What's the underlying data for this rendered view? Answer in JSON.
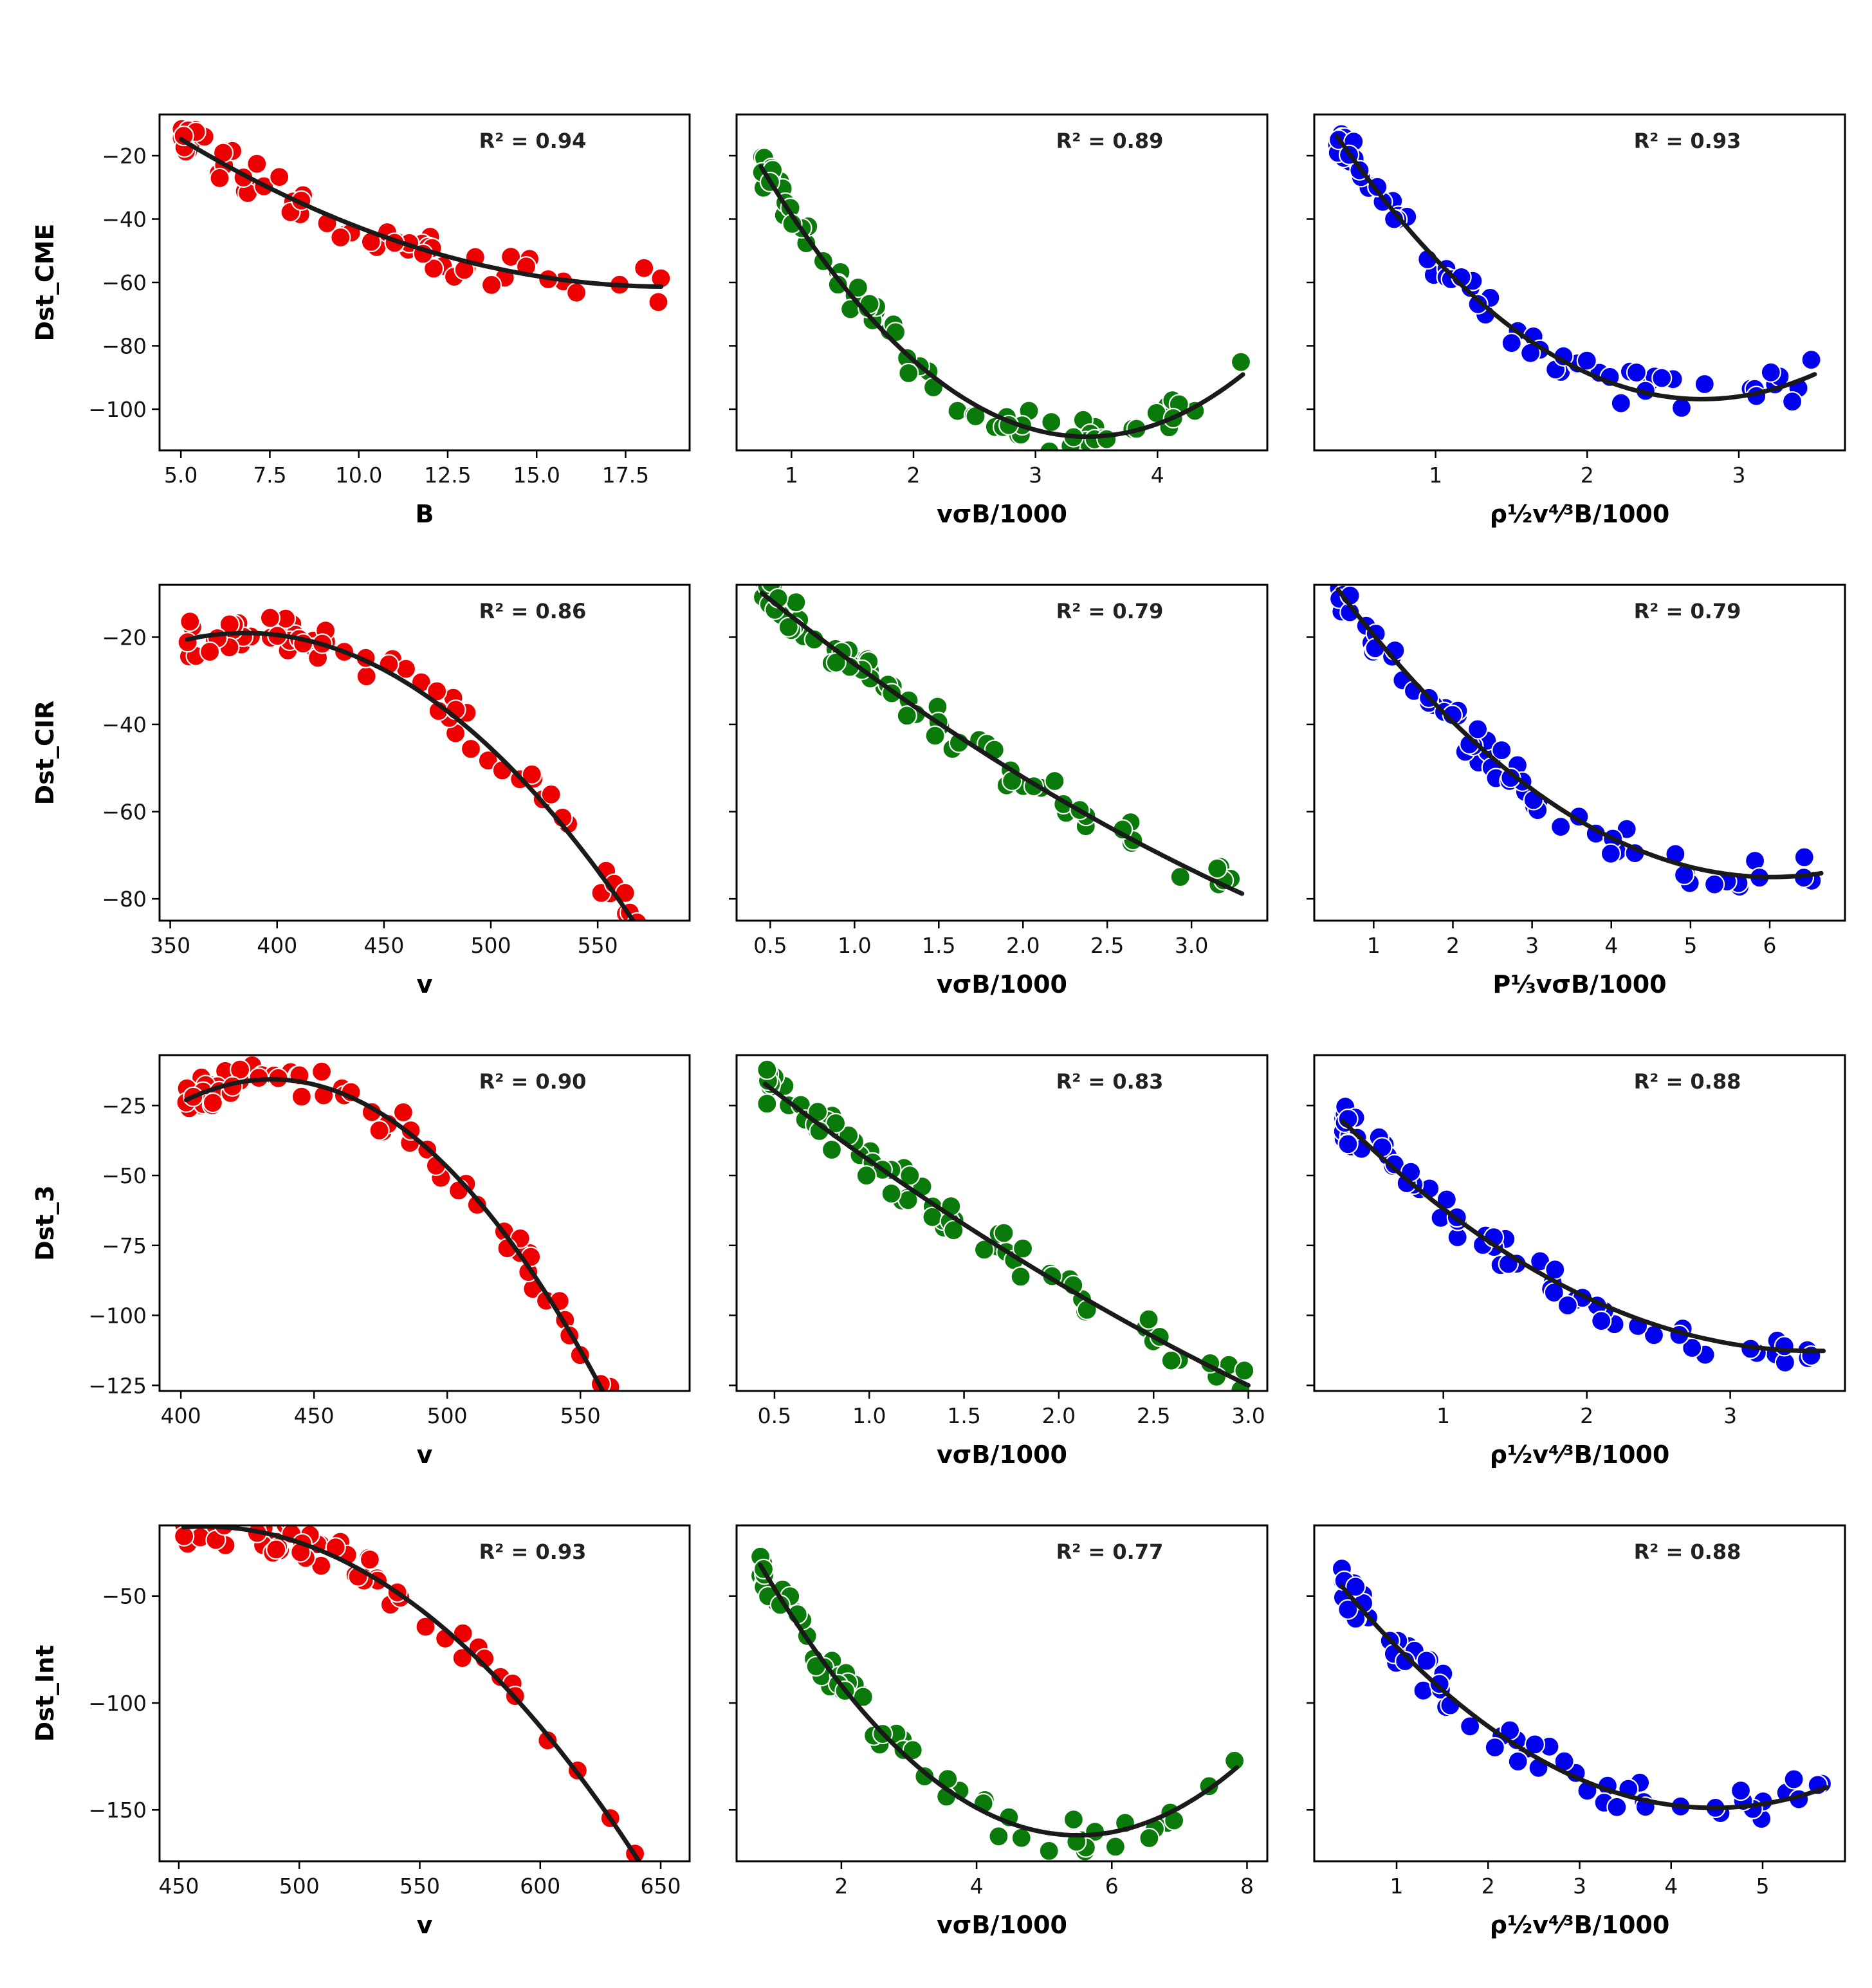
{
  "colors": {
    "red": "#ee0000",
    "green": "#0a7a0a",
    "blue": "#0000ee",
    "fit": "#1a1a1a"
  },
  "chart_data": [
    {
      "type": "scatter",
      "row": 0,
      "col": 0,
      "ylabel": "Dst_CME",
      "xlabel": "B",
      "annotation": "R² = 0.94",
      "color": "red",
      "xlim": [
        4.4,
        19.3
      ],
      "ylim": [
        -113,
        -7
      ],
      "xticks": [
        5.0,
        7.5,
        10.0,
        12.5,
        15.0,
        17.5
      ],
      "xtick_labels": [
        "5.0",
        "7.5",
        "10.0",
        "12.5",
        "15.0",
        "17.5"
      ],
      "yticks": [
        -20,
        -40,
        -60,
        -80,
        -100
      ],
      "ytick_labels": [
        "−20",
        "−40",
        "−60",
        "−80",
        "−100"
      ],
      "fit": [
        0.249,
        -9.3,
        25.5
      ],
      "fit_range": [
        5.0,
        18.5
      ]
    },
    {
      "type": "scatter",
      "row": 0,
      "col": 1,
      "ylabel": "",
      "xlabel": "vσB/1000",
      "annotation": "R² = 0.89",
      "color": "green",
      "xlim": [
        0.55,
        4.9
      ],
      "ylim": [
        -113,
        -7
      ],
      "xticks": [
        1,
        2,
        3,
        4
      ],
      "xtick_labels": [
        "1",
        "2",
        "3",
        "4"
      ],
      "yticks": [
        -20,
        -40,
        -60,
        -80,
        -100
      ],
      "ytick_labels": [],
      "fit": [
        11.96,
        -81.8,
        31.2
      ],
      "fit_range": [
        0.75,
        4.7
      ]
    },
    {
      "type": "scatter",
      "row": 0,
      "col": 2,
      "ylabel": "",
      "xlabel": "ρ½v⁴⁄³B/1000",
      "annotation": "R² = 0.93",
      "color": "blue",
      "xlim": [
        0.2,
        3.7
      ],
      "ylim": [
        -113,
        -7
      ],
      "xticks": [
        1,
        2,
        3
      ],
      "xtick_labels": [
        "1",
        "2",
        "3"
      ],
      "yticks": [
        -20,
        -40,
        -60,
        -80,
        -100
      ],
      "ytick_labels": [],
      "fit": [
        14.3,
        -78.9,
        12.0
      ],
      "fit_range": [
        0.35,
        3.5
      ]
    },
    {
      "type": "scatter",
      "row": 1,
      "col": 0,
      "ylabel": "Dst_CIR",
      "xlabel": "v",
      "annotation": "R² = 0.86",
      "color": "red",
      "xlim": [
        345,
        593
      ],
      "ylim": [
        -85,
        -8
      ],
      "xticks": [
        350,
        400,
        450,
        500,
        550
      ],
      "xtick_labels": [
        "350",
        "400",
        "450",
        "500",
        "550"
      ],
      "yticks": [
        -20,
        -40,
        -60,
        -80
      ],
      "ytick_labels": [
        "−20",
        "−40",
        "−60",
        "−80"
      ],
      "fit": [
        -0.002,
        1.54,
        -315.5
      ],
      "fit_range": [
        358,
        580
      ]
    },
    {
      "type": "scatter",
      "row": 1,
      "col": 1,
      "ylabel": "",
      "xlabel": "vσB/1000",
      "annotation": "R² = 0.79",
      "color": "green",
      "xlim": [
        0.3,
        3.45
      ],
      "ylim": [
        -85,
        -8
      ],
      "xticks": [
        0.5,
        1.0,
        1.5,
        2.0,
        2.5,
        3.0
      ],
      "xtick_labels": [
        "0.5",
        "1.0",
        "1.5",
        "2.0",
        "2.5",
        "3.0"
      ],
      "yticks": [
        -20,
        -40,
        -60,
        -80
      ],
      "ytick_labels": [],
      "fit": [
        2.35,
        -33.0,
        4.5
      ],
      "fit_range": [
        0.45,
        3.3
      ]
    },
    {
      "type": "scatter",
      "row": 1,
      "col": 2,
      "ylabel": "",
      "xlabel": "P⅓vσB/1000",
      "annotation": "R² = 0.79",
      "color": "blue",
      "xlim": [
        0.25,
        6.95
      ],
      "ylim": [
        -85,
        -8
      ],
      "xticks": [
        1,
        2,
        3,
        4,
        5,
        6
      ],
      "xtick_labels": [
        "1",
        "2",
        "3",
        "4",
        "5",
        "6"
      ],
      "yticks": [
        -20,
        -40,
        -60,
        -80
      ],
      "ytick_labels": [],
      "fit": [
        2.2,
        -26.5,
        4.8
      ],
      "fit_range": [
        0.55,
        6.65
      ]
    },
    {
      "type": "scatter",
      "row": 2,
      "col": 0,
      "ylabel": "Dst_3",
      "xlabel": "v",
      "annotation": "R² = 0.90",
      "color": "red",
      "xlim": [
        392,
        591
      ],
      "ylim": [
        -127,
        -7
      ],
      "xticks": [
        400,
        450,
        500,
        550
      ],
      "xtick_labels": [
        "400",
        "450",
        "500",
        "550"
      ],
      "yticks": [
        -25,
        -50,
        -75,
        -100,
        -125
      ],
      "ytick_labels": [
        "−25",
        "−50",
        "−75",
        "−100",
        "−125"
      ],
      "fit": [
        -0.0072,
        6.25,
        -1372
      ],
      "fit_range": [
        402,
        580
      ]
    },
    {
      "type": "scatter",
      "row": 2,
      "col": 1,
      "ylabel": "",
      "xlabel": "vσB/1000",
      "annotation": "R² = 0.83",
      "color": "green",
      "xlim": [
        0.3,
        3.1
      ],
      "ylim": [
        -127,
        -7
      ],
      "xticks": [
        0.5,
        1.0,
        1.5,
        2.0,
        2.5,
        3.0
      ],
      "xtick_labels": [
        "0.5",
        "1.0",
        "1.5",
        "2.0",
        "2.5",
        "3.0"
      ],
      "yticks": [
        -25,
        -50,
        -75,
        -100,
        -125
      ],
      "ytick_labels": [],
      "fit": [
        3.7,
        -55.0,
        6.7
      ],
      "fit_range": [
        0.45,
        3.0
      ]
    },
    {
      "type": "scatter",
      "row": 2,
      "col": 2,
      "ylabel": "",
      "xlabel": "ρ½v⁴⁄³B/1000",
      "annotation": "R² = 0.88",
      "color": "blue",
      "xlim": [
        0.1,
        3.8
      ],
      "ylim": [
        -127,
        -7
      ],
      "xticks": [
        1,
        2,
        3
      ],
      "xtick_labels": [
        "1",
        "2",
        "3"
      ],
      "yticks": [
        -25,
        -50,
        -75,
        -100,
        -125
      ],
      "ytick_labels": [],
      "fit": [
        7.6,
        -54.5,
        -15.0
      ],
      "fit_range": [
        0.3,
        3.65
      ]
    },
    {
      "type": "scatter",
      "row": 3,
      "col": 0,
      "ylabel": "Dst_Int",
      "xlabel": "v",
      "annotation": "R² = 0.93",
      "color": "red",
      "xlim": [
        442,
        662
      ],
      "ylim": [
        -174,
        -17
      ],
      "xticks": [
        450,
        500,
        550,
        600,
        650
      ],
      "xtick_labels": [
        "450",
        "500",
        "550",
        "600",
        "650"
      ],
      "yticks": [
        -50,
        -100,
        -150
      ],
      "ytick_labels": [
        "−50",
        "−100",
        "−150"
      ],
      "fit": [
        -0.0048,
        4.42,
        -1035
      ],
      "fit_range": [
        452,
        650
      ]
    },
    {
      "type": "scatter",
      "row": 3,
      "col": 1,
      "ylabel": "",
      "xlabel": "vσB/1000",
      "annotation": "R² = 0.77",
      "color": "green",
      "xlim": [
        0.45,
        8.3
      ],
      "ylim": [
        -174,
        -17
      ],
      "xticks": [
        2,
        4,
        6,
        8
      ],
      "xtick_labels": [
        "2",
        "4",
        "6",
        "8"
      ],
      "yticks": [
        -50,
        -100,
        -150
      ],
      "ytick_labels": [],
      "fit": [
        5.73,
        -63.0,
        11.3
      ],
      "fit_range": [
        0.8,
        7.85
      ]
    },
    {
      "type": "scatter",
      "row": 3,
      "col": 2,
      "ylabel": "",
      "xlabel": "ρ½v⁴⁄³B/1000",
      "annotation": "R² = 0.88",
      "color": "blue",
      "xlim": [
        0.1,
        5.9
      ],
      "ylim": [
        -174,
        -17
      ],
      "xticks": [
        1,
        2,
        3,
        4,
        5
      ],
      "xtick_labels": [
        "1",
        "2",
        "3",
        "4",
        "5"
      ],
      "yticks": [
        -50,
        -100,
        -150
      ],
      "ytick_labels": [],
      "fit": [
        6.27,
        -56.0,
        -24.0
      ],
      "fit_range": [
        0.4,
        5.7
      ]
    }
  ]
}
